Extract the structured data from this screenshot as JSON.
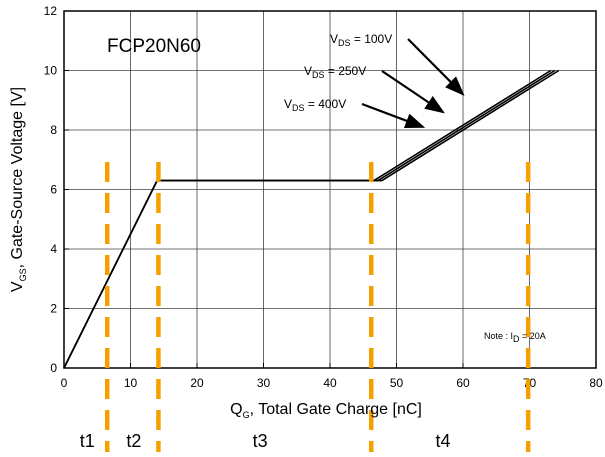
{
  "chart_data": {
    "type": "line",
    "title": "FCP20N60",
    "xlabel": {
      "main": "Q",
      "sub": "G",
      "rest": ", Total Gate Charge [nC]"
    },
    "ylabel": {
      "main": "V",
      "sub": "GS",
      "rest": ", Gate-Source Voltage [V]"
    },
    "xlim": [
      0,
      80
    ],
    "ylim": [
      0,
      12
    ],
    "xticks": [
      0,
      10,
      20,
      30,
      40,
      50,
      60,
      70,
      80
    ],
    "yticks": [
      0,
      2,
      4,
      6,
      8,
      10,
      12
    ],
    "grid": true,
    "series": [
      {
        "name": {
          "main": "V",
          "sub": "DS",
          "rest": " = 100V"
        },
        "x": [
          0,
          14,
          47.8,
          74.4
        ],
        "y": [
          0,
          6.3,
          6.3,
          10
        ]
      },
      {
        "name": {
          "main": "V",
          "sub": "DS",
          "rest": " = 250V"
        },
        "x": [
          0,
          14,
          47.2,
          73.8
        ],
        "y": [
          0,
          6.3,
          6.3,
          10
        ]
      },
      {
        "name": {
          "main": "V",
          "sub": "DS",
          "rest": " = 400V"
        },
        "x": [
          0,
          14,
          46.6,
          73.2
        ],
        "y": [
          0,
          6.3,
          6.3,
          10
        ]
      }
    ],
    "note": {
      "prefix": "Note : I",
      "sub": "D",
      "rest": " = 20A"
    },
    "phase_markers": {
      "color": "#f5a000",
      "x": [
        6.5,
        14.2,
        46.2,
        69.8
      ],
      "labels": [
        {
          "text": "t1",
          "x": 3.5
        },
        {
          "text": "t2",
          "x": 10.5
        },
        {
          "text": "t3",
          "x": 29.5
        },
        {
          "text": "t4",
          "x": 57
        }
      ]
    },
    "annotations_arrow_targets": [
      {
        "series": 0,
        "x": 60,
        "y": 9.2
      },
      {
        "series": 1,
        "x": 57,
        "y": 8.6
      },
      {
        "series": 2,
        "x": 54,
        "y": 8.1
      }
    ]
  }
}
